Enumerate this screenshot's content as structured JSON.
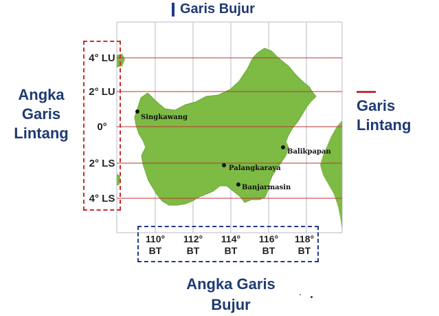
{
  "titles": {
    "top": "Garis Bujur",
    "right": [
      "Garis",
      "Lintang"
    ],
    "left": [
      "Angka",
      "Garis",
      "Lintang"
    ],
    "bottom": [
      "Angka Garis",
      "Bujur"
    ]
  },
  "latitude_labels": [
    "4° LU",
    "2° LU",
    "0°",
    "2° LS",
    "4° LS"
  ],
  "longitude_labels": [
    {
      "deg": "110°",
      "dir": "BT"
    },
    {
      "deg": "112°",
      "dir": "BT"
    },
    {
      "deg": "114°",
      "dir": "BT"
    },
    {
      "deg": "116°",
      "dir": "BT"
    },
    {
      "deg": "118°",
      "dir": "BT"
    }
  ],
  "cities": [
    "Singkawang",
    "Balikpapan",
    "Palangkaraya",
    "Banjarmasin"
  ],
  "colors": {
    "land": "#7dbb45",
    "grid": "#b8b8c4",
    "latitude_line": "#c23030",
    "longitude_line": "#1f3a8a",
    "latitude_box": "#d02a2a",
    "longitude_box": "#1f3a8a",
    "title_text": "#1f3a73"
  }
}
